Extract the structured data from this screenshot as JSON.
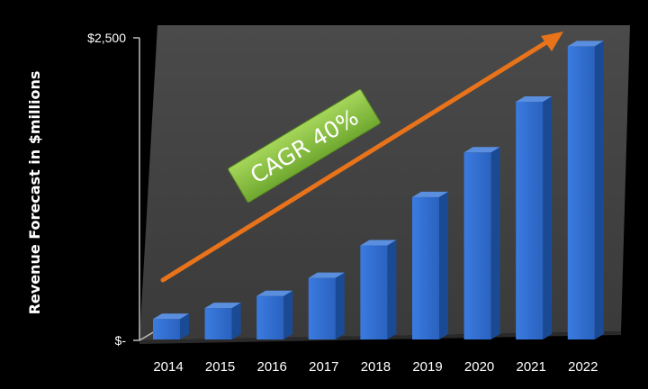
{
  "chart_data": {
    "type": "bar",
    "title": "",
    "xlabel": "",
    "ylabel": "Revenue Forecast in $millions",
    "categories": [
      "2014",
      "2015",
      "2016",
      "2017",
      "2018",
      "2019",
      "2020",
      "2021",
      "2022"
    ],
    "values": [
      170,
      260,
      360,
      510,
      780,
      1180,
      1550,
      1970,
      2430
    ],
    "ylim": [
      0,
      2500
    ],
    "y_tick_labels": [
      "$-",
      "$2,500"
    ],
    "grid": false,
    "legend": "none",
    "annotation": {
      "text": "CAGR 40%",
      "style": "green badge along upward arrow"
    },
    "colors": {
      "bar_front": "#2f6fd0",
      "bar_side": "#1b4a94",
      "bar_top": "#5a8fe0",
      "plot_wall": "#3f3f3f",
      "arrow": "#e8731a",
      "badge": "#8bc34a"
    }
  }
}
